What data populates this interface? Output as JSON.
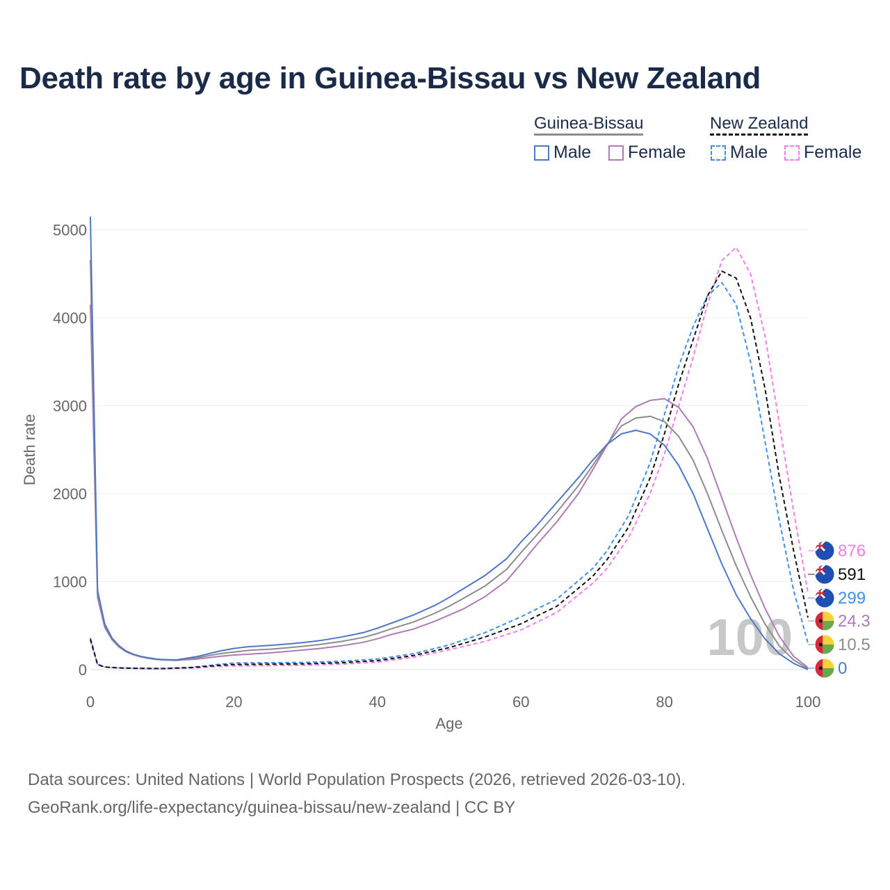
{
  "title": "Death rate by age in Guinea-Bissau vs New Zealand",
  "legend": {
    "groups": [
      {
        "label": "Guinea-Bissau",
        "color": "#8c8c8c",
        "dashed": false
      },
      {
        "label": "New Zealand",
        "color": "#111111",
        "dashed": true
      }
    ],
    "items": [
      {
        "label": "Male",
        "color": "#4d78c7",
        "dashed": false
      },
      {
        "label": "Female",
        "color": "#b07ab8",
        "dashed": false
      },
      {
        "label": "Male",
        "color": "#3d8fe8",
        "dashed": true
      },
      {
        "label": "Female",
        "color": "#f27de8",
        "dashed": true
      }
    ]
  },
  "year_watermark": "100",
  "end_labels": [
    {
      "value": "876",
      "color": "#f27de8",
      "flag": "new-zealand"
    },
    {
      "value": "591",
      "color": "#111111",
      "flag": "new-zealand"
    },
    {
      "value": "299",
      "color": "#3d8fe8",
      "flag": "new-zealand"
    },
    {
      "value": "24.3",
      "color": "#b07ab8",
      "flag": "guinea-bissau"
    },
    {
      "value": "10.5",
      "color": "#8c8c8c",
      "flag": "guinea-bissau"
    },
    {
      "value": "0",
      "color": "#4d78c7",
      "flag": "guinea-bissau"
    }
  ],
  "footer": {
    "line1": "Data sources: United Nations | World Population Prospects (2026, retrieved 2026-03-10).",
    "line2": "GeoRank.org/life-expectancy/guinea-bissau/new-zealand | CC BY"
  },
  "chart_data": {
    "type": "line",
    "title": "Death rate by age in Guinea-Bissau vs New Zealand",
    "xlabel": "Age",
    "ylabel": "Death rate",
    "xlim": [
      0,
      100
    ],
    "ylim": [
      0,
      5200
    ],
    "xticks": [
      "0",
      "20",
      "40",
      "60",
      "80",
      "100"
    ],
    "yticks": [
      "0",
      "1000",
      "2000",
      "3000",
      "4000",
      "5000"
    ],
    "grid": true,
    "series": [
      {
        "name": "Guinea-Bissau Male",
        "color": "#4d78c7",
        "dashed": false,
        "x": [
          0,
          1,
          2,
          3,
          4,
          5,
          6,
          7,
          8,
          9,
          10,
          12,
          15,
          18,
          20,
          22,
          25,
          28,
          30,
          32,
          35,
          38,
          40,
          42,
          45,
          48,
          50,
          52,
          55,
          58,
          60,
          62,
          65,
          68,
          70,
          72,
          74,
          76,
          78,
          80,
          82,
          84,
          86,
          88,
          90,
          92,
          94,
          96,
          98,
          100
        ],
        "y": [
          5150,
          900,
          520,
          360,
          270,
          210,
          175,
          150,
          135,
          122,
          115,
          110,
          150,
          210,
          240,
          260,
          275,
          295,
          310,
          330,
          370,
          420,
          470,
          530,
          620,
          730,
          820,
          920,
          1070,
          1260,
          1450,
          1620,
          1900,
          2180,
          2380,
          2560,
          2680,
          2720,
          2680,
          2550,
          2320,
          2000,
          1600,
          1200,
          850,
          580,
          350,
          180,
          70,
          0
        ]
      },
      {
        "name": "Guinea-Bissau Female",
        "color": "#b07ab8",
        "dashed": false,
        "x": [
          0,
          1,
          2,
          3,
          4,
          5,
          6,
          7,
          8,
          9,
          10,
          12,
          15,
          18,
          20,
          22,
          25,
          28,
          30,
          32,
          35,
          38,
          40,
          42,
          45,
          48,
          50,
          52,
          55,
          58,
          60,
          62,
          65,
          68,
          70,
          72,
          74,
          76,
          78,
          80,
          82,
          84,
          86,
          88,
          90,
          92,
          94,
          96,
          98,
          100
        ],
        "y": [
          4150,
          820,
          480,
          340,
          255,
          200,
          168,
          145,
          128,
          117,
          110,
          105,
          120,
          150,
          165,
          175,
          190,
          210,
          225,
          240,
          270,
          310,
          350,
          400,
          460,
          550,
          620,
          690,
          830,
          1010,
          1200,
          1400,
          1680,
          2000,
          2270,
          2550,
          2850,
          2990,
          3060,
          3080,
          2980,
          2760,
          2400,
          1950,
          1500,
          1080,
          700,
          380,
          150,
          24.3
        ]
      },
      {
        "name": "Guinea-Bissau Total",
        "color": "#8c8c8c",
        "dashed": false,
        "x": [
          0,
          1,
          2,
          3,
          4,
          5,
          6,
          7,
          8,
          9,
          10,
          12,
          15,
          18,
          20,
          22,
          25,
          28,
          30,
          32,
          35,
          38,
          40,
          42,
          45,
          48,
          50,
          52,
          55,
          58,
          60,
          62,
          65,
          68,
          70,
          72,
          74,
          76,
          78,
          80,
          82,
          84,
          86,
          88,
          90,
          92,
          94,
          96,
          98,
          100
        ],
        "y": [
          4660,
          860,
          500,
          350,
          262,
          205,
          172,
          148,
          132,
          120,
          113,
          108,
          135,
          180,
          200,
          218,
          232,
          252,
          268,
          285,
          320,
          365,
          410,
          465,
          540,
          640,
          720,
          810,
          950,
          1140,
          1330,
          1510,
          1790,
          2090,
          2320,
          2560,
          2770,
          2860,
          2880,
          2820,
          2650,
          2380,
          2000,
          1580,
          1180,
          830,
          520,
          270,
          110,
          10.5
        ]
      },
      {
        "name": "New Zealand Male",
        "color": "#3d8fe8",
        "dashed": true,
        "x": [
          0,
          1,
          2,
          4,
          6,
          10,
          14,
          18,
          20,
          25,
          30,
          35,
          40,
          45,
          50,
          55,
          60,
          65,
          70,
          72,
          75,
          78,
          80,
          82,
          84,
          86,
          88,
          90,
          92,
          94,
          96,
          98,
          100
        ],
        "y": [
          360,
          60,
          30,
          20,
          15,
          12,
          25,
          60,
          75,
          78,
          82,
          95,
          120,
          180,
          280,
          420,
          600,
          800,
          1150,
          1350,
          1750,
          2350,
          2900,
          3450,
          3900,
          4250,
          4400,
          4150,
          3500,
          2600,
          1700,
          900,
          299
        ]
      },
      {
        "name": "New Zealand Female",
        "color": "#f27de8",
        "dashed": true,
        "x": [
          0,
          1,
          2,
          4,
          6,
          10,
          14,
          18,
          20,
          25,
          30,
          35,
          40,
          45,
          50,
          55,
          60,
          65,
          70,
          72,
          75,
          78,
          80,
          82,
          84,
          86,
          88,
          90,
          92,
          94,
          96,
          98,
          100
        ],
        "y": [
          330,
          55,
          28,
          18,
          14,
          11,
          18,
          35,
          42,
          45,
          50,
          62,
          85,
          140,
          225,
          320,
          450,
          650,
          980,
          1150,
          1500,
          2000,
          2450,
          3000,
          3550,
          4150,
          4650,
          4800,
          4500,
          3800,
          2800,
          1800,
          876
        ]
      },
      {
        "name": "New Zealand Total",
        "color": "#111111",
        "dashed": true,
        "x": [
          0,
          1,
          2,
          4,
          6,
          10,
          14,
          18,
          20,
          25,
          30,
          35,
          40,
          45,
          50,
          55,
          60,
          65,
          70,
          72,
          75,
          78,
          80,
          82,
          84,
          86,
          88,
          90,
          92,
          94,
          96,
          98,
          100
        ],
        "y": [
          345,
          58,
          29,
          19,
          15,
          12,
          22,
          48,
          58,
          62,
          66,
          78,
          102,
          160,
          250,
          370,
          520,
          720,
          1060,
          1250,
          1620,
          2180,
          2680,
          3250,
          3750,
          4250,
          4530,
          4450,
          4000,
          3200,
          2200,
          1350,
          591
        ]
      }
    ]
  }
}
